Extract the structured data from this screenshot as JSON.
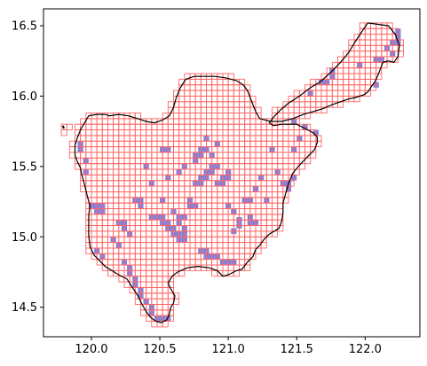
{
  "chart_data": {
    "type": "heatmap",
    "title": "",
    "xlabel": "",
    "ylabel": "",
    "xlim": [
      119.65,
      122.4
    ],
    "ylim": [
      14.29,
      16.62
    ],
    "xticks": [
      120.0,
      120.5,
      121.0,
      121.5,
      122.0
    ],
    "xtick_labels": [
      "120.0",
      "120.5",
      "121.0",
      "121.5",
      "122.0"
    ],
    "yticks": [
      14.5,
      15.0,
      15.5,
      16.0,
      16.5
    ],
    "ytick_labels": [
      "14.5",
      "15.0",
      "15.5",
      "16.0",
      "16.5"
    ],
    "grid": false,
    "legend": "none",
    "cell_size_deg": 0.04,
    "grid_cells_color": "#ff6666",
    "highlight_color": "#6b6bd6",
    "boundary_color": "#000000",
    "boundary": [
      [
        120.13,
        15.86
      ],
      [
        120.1,
        15.87
      ],
      [
        120.04,
        15.87
      ],
      [
        119.98,
        15.86
      ],
      [
        119.95,
        15.81
      ],
      [
        119.92,
        15.76
      ],
      [
        119.9,
        15.71
      ],
      [
        119.88,
        15.65
      ],
      [
        119.88,
        15.58
      ],
      [
        119.9,
        15.53
      ],
      [
        119.92,
        15.49
      ],
      [
        119.93,
        15.44
      ],
      [
        119.95,
        15.37
      ],
      [
        119.97,
        15.29
      ],
      [
        119.99,
        15.22
      ],
      [
        119.98,
        15.15
      ],
      [
        119.98,
        15.07
      ],
      [
        119.98,
        15.01
      ],
      [
        119.99,
        14.93
      ],
      [
        120.02,
        14.87
      ],
      [
        120.06,
        14.83
      ],
      [
        120.1,
        14.79
      ],
      [
        120.15,
        14.76
      ],
      [
        120.2,
        14.73
      ],
      [
        120.26,
        14.7
      ],
      [
        120.3,
        14.64
      ],
      [
        120.34,
        14.58
      ],
      [
        120.37,
        14.52
      ],
      [
        120.4,
        14.47
      ],
      [
        120.43,
        14.43
      ],
      [
        120.47,
        14.4
      ],
      [
        120.51,
        14.39
      ],
      [
        120.55,
        14.41
      ],
      [
        120.57,
        14.45
      ],
      [
        120.58,
        14.5
      ],
      [
        120.6,
        14.53
      ],
      [
        120.61,
        14.58
      ],
      [
        120.58,
        14.63
      ],
      [
        120.56,
        14.67
      ],
      [
        120.59,
        14.72
      ],
      [
        120.63,
        14.75
      ],
      [
        120.7,
        14.78
      ],
      [
        120.78,
        14.79
      ],
      [
        120.86,
        14.78
      ],
      [
        120.92,
        14.76
      ],
      [
        120.96,
        14.72
      ],
      [
        121.0,
        14.73
      ],
      [
        121.06,
        14.76
      ],
      [
        121.1,
        14.77
      ],
      [
        121.14,
        14.82
      ],
      [
        121.18,
        14.86
      ],
      [
        121.2,
        14.91
      ],
      [
        121.23,
        14.94
      ],
      [
        121.26,
        14.98
      ],
      [
        121.3,
        15.02
      ],
      [
        121.37,
        15.06
      ],
      [
        121.39,
        15.11
      ],
      [
        121.4,
        15.17
      ],
      [
        121.4,
        15.24
      ],
      [
        121.42,
        15.31
      ],
      [
        121.44,
        15.38
      ],
      [
        121.47,
        15.45
      ],
      [
        121.52,
        15.51
      ],
      [
        121.58,
        15.57
      ],
      [
        121.63,
        15.62
      ],
      [
        121.65,
        15.67
      ],
      [
        121.65,
        15.71
      ],
      [
        121.62,
        15.74
      ],
      [
        121.58,
        15.76
      ],
      [
        121.54,
        15.78
      ],
      [
        121.5,
        15.8
      ],
      [
        121.45,
        15.8
      ],
      [
        121.39,
        15.8
      ],
      [
        121.33,
        15.79
      ],
      [
        121.3,
        15.81
      ],
      [
        121.33,
        15.85
      ],
      [
        121.38,
        15.9
      ],
      [
        121.44,
        15.95
      ],
      [
        121.52,
        16.0
      ],
      [
        121.6,
        16.06
      ],
      [
        121.67,
        16.1
      ],
      [
        121.75,
        16.17
      ],
      [
        121.82,
        16.24
      ],
      [
        121.88,
        16.31
      ],
      [
        121.93,
        16.39
      ],
      [
        121.97,
        16.45
      ],
      [
        122.02,
        16.52
      ],
      [
        122.17,
        16.5
      ],
      [
        122.22,
        16.44
      ],
      [
        122.25,
        16.36
      ],
      [
        122.24,
        16.28
      ],
      [
        122.21,
        16.24
      ],
      [
        122.17,
        16.25
      ],
      [
        122.13,
        16.24
      ],
      [
        122.11,
        16.19
      ],
      [
        122.09,
        16.14
      ],
      [
        122.07,
        16.1
      ],
      [
        122.04,
        16.06
      ],
      [
        122.02,
        16.03
      ],
      [
        121.99,
        16.01
      ],
      [
        121.96,
        16.0
      ],
      [
        121.93,
        15.99
      ],
      [
        121.88,
        15.98
      ],
      [
        121.82,
        15.96
      ],
      [
        121.76,
        15.94
      ],
      [
        121.69,
        15.91
      ],
      [
        121.62,
        15.89
      ],
      [
        121.55,
        15.87
      ],
      [
        121.47,
        15.84
      ],
      [
        121.39,
        15.82
      ],
      [
        121.31,
        15.82
      ],
      [
        121.23,
        15.84
      ],
      [
        121.2,
        15.89
      ],
      [
        121.18,
        15.94
      ],
      [
        121.16,
        15.99
      ],
      [
        121.14,
        16.04
      ],
      [
        121.11,
        16.08
      ],
      [
        121.06,
        16.11
      ],
      [
        120.98,
        16.13
      ],
      [
        120.9,
        16.14
      ],
      [
        120.82,
        16.14
      ],
      [
        120.75,
        16.14
      ],
      [
        120.69,
        16.12
      ],
      [
        120.65,
        16.06
      ],
      [
        120.62,
        15.99
      ],
      [
        120.6,
        15.92
      ],
      [
        120.57,
        15.86
      ],
      [
        120.52,
        15.83
      ],
      [
        120.46,
        15.81
      ],
      [
        120.4,
        15.82
      ],
      [
        120.34,
        15.84
      ],
      [
        120.27,
        15.86
      ],
      [
        120.2,
        15.87
      ],
      [
        120.13,
        15.86
      ]
    ],
    "highlighted_cells": [
      [
        119.9,
        15.6
      ],
      [
        119.9,
        15.64
      ],
      [
        119.94,
        15.52
      ],
      [
        119.94,
        15.44
      ],
      [
        119.98,
        15.2
      ],
      [
        120.02,
        15.2
      ],
      [
        120.06,
        15.2
      ],
      [
        120.02,
        15.16
      ],
      [
        120.06,
        15.16
      ],
      [
        120.02,
        14.88
      ],
      [
        120.06,
        14.84
      ],
      [
        120.14,
        14.96
      ],
      [
        120.18,
        14.92
      ],
      [
        120.22,
        14.8
      ],
      [
        120.26,
        14.76
      ],
      [
        120.26,
        14.72
      ],
      [
        120.3,
        14.68
      ],
      [
        120.3,
        14.64
      ],
      [
        120.34,
        14.6
      ],
      [
        120.34,
        14.56
      ],
      [
        120.38,
        14.52
      ],
      [
        120.42,
        14.48
      ],
      [
        120.42,
        14.44
      ],
      [
        120.46,
        14.4
      ],
      [
        120.5,
        14.4
      ],
      [
        120.54,
        14.4
      ],
      [
        120.18,
        15.08
      ],
      [
        120.22,
        15.08
      ],
      [
        120.22,
        15.04
      ],
      [
        120.26,
        15.0
      ],
      [
        120.3,
        15.24
      ],
      [
        120.34,
        15.24
      ],
      [
        120.34,
        15.2
      ],
      [
        120.38,
        15.48
      ],
      [
        120.42,
        15.36
      ],
      [
        120.42,
        15.12
      ],
      [
        120.46,
        15.12
      ],
      [
        120.5,
        15.12
      ],
      [
        120.5,
        15.08
      ],
      [
        120.54,
        15.08
      ],
      [
        120.54,
        15.04
      ],
      [
        120.58,
        15.04
      ],
      [
        120.58,
        15.0
      ],
      [
        120.62,
        15.0
      ],
      [
        120.62,
        14.96
      ],
      [
        120.66,
        14.96
      ],
      [
        120.66,
        15.0
      ],
      [
        120.66,
        15.04
      ],
      [
        120.62,
        15.08
      ],
      [
        120.62,
        15.12
      ],
      [
        120.66,
        15.12
      ],
      [
        120.58,
        15.16
      ],
      [
        120.5,
        15.24
      ],
      [
        120.5,
        15.6
      ],
      [
        120.54,
        15.6
      ],
      [
        120.54,
        15.4
      ],
      [
        120.62,
        15.44
      ],
      [
        120.66,
        15.48
      ],
      [
        120.7,
        15.24
      ],
      [
        120.7,
        15.2
      ],
      [
        120.74,
        15.2
      ],
      [
        120.74,
        15.36
      ],
      [
        120.78,
        15.36
      ],
      [
        120.78,
        15.4
      ],
      [
        120.82,
        15.4
      ],
      [
        120.82,
        15.44
      ],
      [
        120.86,
        15.44
      ],
      [
        120.86,
        15.48
      ],
      [
        120.9,
        15.48
      ],
      [
        120.86,
        15.56
      ],
      [
        120.82,
        15.6
      ],
      [
        120.78,
        15.6
      ],
      [
        120.78,
        15.56
      ],
      [
        120.74,
        15.52
      ],
      [
        120.74,
        15.56
      ],
      [
        120.9,
        15.36
      ],
      [
        120.94,
        15.36
      ],
      [
        120.94,
        15.4
      ],
      [
        120.98,
        15.4
      ],
      [
        120.98,
        15.44
      ],
      [
        120.9,
        15.64
      ],
      [
        120.82,
        15.68
      ],
      [
        120.78,
        14.88
      ],
      [
        120.82,
        14.88
      ],
      [
        120.82,
        14.84
      ],
      [
        120.86,
        14.84
      ],
      [
        120.9,
        14.84
      ],
      [
        120.94,
        14.8
      ],
      [
        120.98,
        14.8
      ],
      [
        121.02,
        14.8
      ],
      [
        121.02,
        15.02
      ],
      [
        121.06,
        15.06
      ],
      [
        121.06,
        15.1
      ],
      [
        121.1,
        15.24
      ],
      [
        121.14,
        15.24
      ],
      [
        121.18,
        15.32
      ],
      [
        121.22,
        15.4
      ],
      [
        120.98,
        15.2
      ],
      [
        121.02,
        15.16
      ],
      [
        121.14,
        15.12
      ],
      [
        121.14,
        15.08
      ],
      [
        121.18,
        15.08
      ],
      [
        121.26,
        15.24
      ],
      [
        121.3,
        15.6
      ],
      [
        121.34,
        15.44
      ],
      [
        121.38,
        15.36
      ],
      [
        121.42,
        15.36
      ],
      [
        121.42,
        15.32
      ],
      [
        121.46,
        15.4
      ],
      [
        121.46,
        15.6
      ],
      [
        121.5,
        15.68
      ],
      [
        121.54,
        15.76
      ],
      [
        121.46,
        15.8
      ],
      [
        121.62,
        15.72
      ],
      [
        121.66,
        16.08
      ],
      [
        121.7,
        16.08
      ],
      [
        121.74,
        16.12
      ],
      [
        121.74,
        16.16
      ],
      [
        121.58,
        16.0
      ],
      [
        121.94,
        16.2
      ],
      [
        122.06,
        16.24
      ],
      [
        122.1,
        16.24
      ],
      [
        122.14,
        16.32
      ],
      [
        122.18,
        16.36
      ],
      [
        122.18,
        16.28
      ],
      [
        122.22,
        16.36
      ],
      [
        122.22,
        16.4
      ],
      [
        122.22,
        16.44
      ],
      [
        122.06,
        16.06
      ]
    ]
  }
}
